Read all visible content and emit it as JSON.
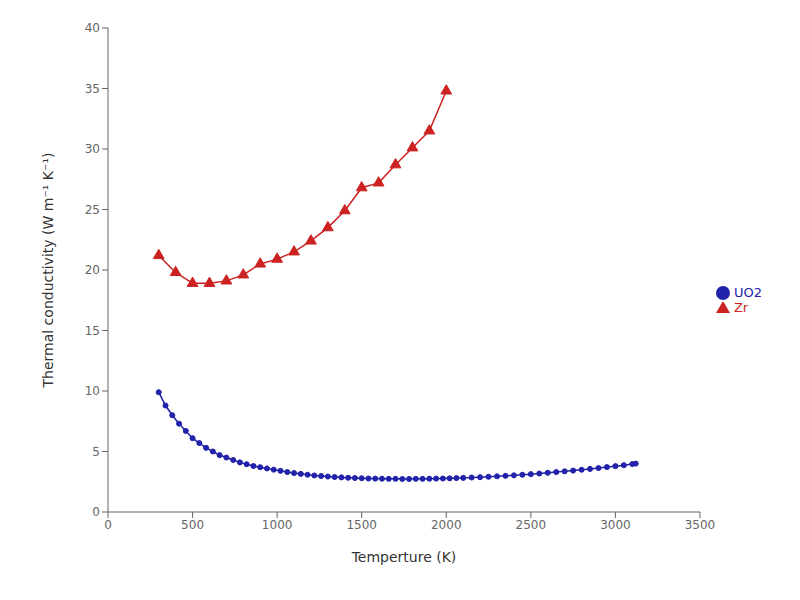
{
  "chart_data": {
    "type": "line",
    "xlabel": "Temperture (K)",
    "ylabel": "Thermal conductivity (W m⁻¹ K⁻¹)",
    "xlim": [
      0,
      3500
    ],
    "ylim": [
      0,
      40
    ],
    "xticks": [
      0,
      500,
      1000,
      1500,
      2000,
      2500,
      3000,
      3500
    ],
    "yticks": [
      0,
      5,
      10,
      15,
      20,
      25,
      30,
      35,
      40
    ],
    "grid": false,
    "legend": "center right",
    "series": [
      {
        "name": "UO2",
        "color": "#2222aa",
        "marker": "circle",
        "x": [
          300,
          340,
          380,
          420,
          460,
          500,
          540,
          580,
          620,
          660,
          700,
          740,
          780,
          820,
          860,
          900,
          940,
          980,
          1020,
          1060,
          1100,
          1140,
          1180,
          1220,
          1260,
          1300,
          1340,
          1380,
          1420,
          1460,
          1500,
          1540,
          1580,
          1620,
          1660,
          1700,
          1740,
          1780,
          1820,
          1860,
          1900,
          1940,
          1980,
          2020,
          2060,
          2100,
          2150,
          2200,
          2250,
          2300,
          2350,
          2400,
          2450,
          2500,
          2550,
          2600,
          2650,
          2700,
          2750,
          2800,
          2850,
          2900,
          2950,
          3000,
          3050,
          3100,
          3120
        ],
        "values": [
          9.9,
          8.8,
          8.0,
          7.3,
          6.7,
          6.1,
          5.7,
          5.3,
          5.0,
          4.7,
          4.5,
          4.3,
          4.1,
          3.95,
          3.8,
          3.7,
          3.6,
          3.5,
          3.4,
          3.3,
          3.22,
          3.15,
          3.08,
          3.02,
          2.97,
          2.93,
          2.89,
          2.86,
          2.83,
          2.81,
          2.79,
          2.77,
          2.76,
          2.75,
          2.74,
          2.74,
          2.73,
          2.73,
          2.74,
          2.74,
          2.75,
          2.76,
          2.77,
          2.78,
          2.8,
          2.82,
          2.85,
          2.88,
          2.91,
          2.95,
          2.99,
          3.03,
          3.08,
          3.13,
          3.18,
          3.24,
          3.3,
          3.36,
          3.42,
          3.49,
          3.56,
          3.63,
          3.71,
          3.79,
          3.87,
          3.96,
          4.0
        ]
      },
      {
        "name": "Zr",
        "color": "#cc2222",
        "marker": "triangle",
        "x": [
          300,
          400,
          500,
          600,
          700,
          800,
          900,
          1000,
          1100,
          1200,
          1300,
          1400,
          1500,
          1600,
          1700,
          1800,
          1900,
          2000
        ],
        "values": [
          21.2,
          19.8,
          18.9,
          18.9,
          19.1,
          19.6,
          20.5,
          20.9,
          21.5,
          22.4,
          23.5,
          24.9,
          26.8,
          27.2,
          28.7,
          30.1,
          31.5,
          34.8
        ]
      }
    ]
  }
}
